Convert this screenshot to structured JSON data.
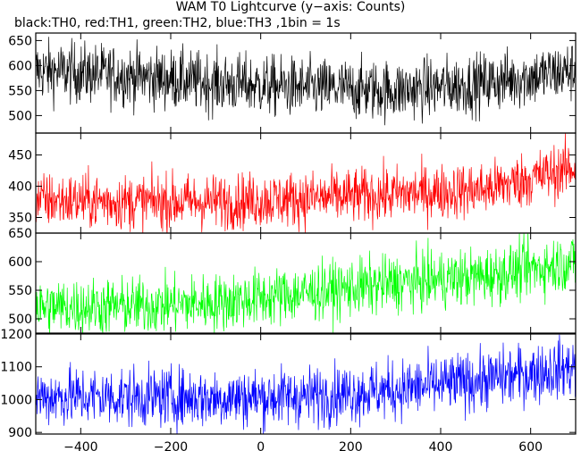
{
  "title": "WAM T0 Lightcurve (y−axis: Counts)",
  "subtitle": "black:TH0, red:TH1, green:TH2, blue:TH3 ,1bin = 1s",
  "chart_data": {
    "type": "line",
    "title": "WAM T0 Lightcurve (y−axis: Counts)",
    "subtitle": "black:TH0, red:TH1, green:TH2, blue:TH3 ,1bin = 1s",
    "xlim": [
      -500,
      700
    ],
    "x_ticks": [
      -400,
      -200,
      0,
      200,
      400,
      600
    ],
    "x_tick_labels": [
      "−400",
      "−200",
      "0",
      "200",
      "400",
      "600"
    ],
    "bin_seconds": 1,
    "panels": [
      {
        "name": "TH0",
        "color": "#000000",
        "ylim": [
          465,
          665
        ],
        "yticks": [
          500,
          550,
          600,
          650
        ],
        "trend_x": [
          -500,
          -300,
          -100,
          100,
          300,
          500,
          700
        ],
        "trend_y": [
          590,
          580,
          565,
          555,
          550,
          565,
          590
        ],
        "noise_amplitude": 30
      },
      {
        "name": "TH1",
        "color": "#ff0000",
        "ylim": [
          325,
          485
        ],
        "yticks": [
          350,
          400,
          450
        ],
        "trend_x": [
          -500,
          -300,
          -100,
          100,
          300,
          500,
          700
        ],
        "trend_y": [
          378,
          375,
          375,
          380,
          387,
          395,
          430
        ],
        "noise_amplitude": 22
      },
      {
        "name": "TH2",
        "color": "#00ff00",
        "ylim": [
          475,
          650
        ],
        "yticks": [
          500,
          550,
          600,
          650
        ],
        "trend_x": [
          -500,
          -300,
          -100,
          100,
          300,
          500,
          700
        ],
        "trend_y": [
          520,
          522,
          528,
          545,
          562,
          575,
          600
        ],
        "noise_amplitude": 25
      },
      {
        "name": "TH3",
        "color": "#0000ff",
        "ylim": [
          895,
          1200
        ],
        "yticks": [
          900,
          1000,
          1100,
          1200
        ],
        "trend_x": [
          -500,
          -300,
          -100,
          100,
          300,
          500,
          700
        ],
        "trend_y": [
          1010,
          1008,
          1005,
          1010,
          1030,
          1060,
          1100
        ],
        "noise_amplitude": 45
      }
    ]
  }
}
